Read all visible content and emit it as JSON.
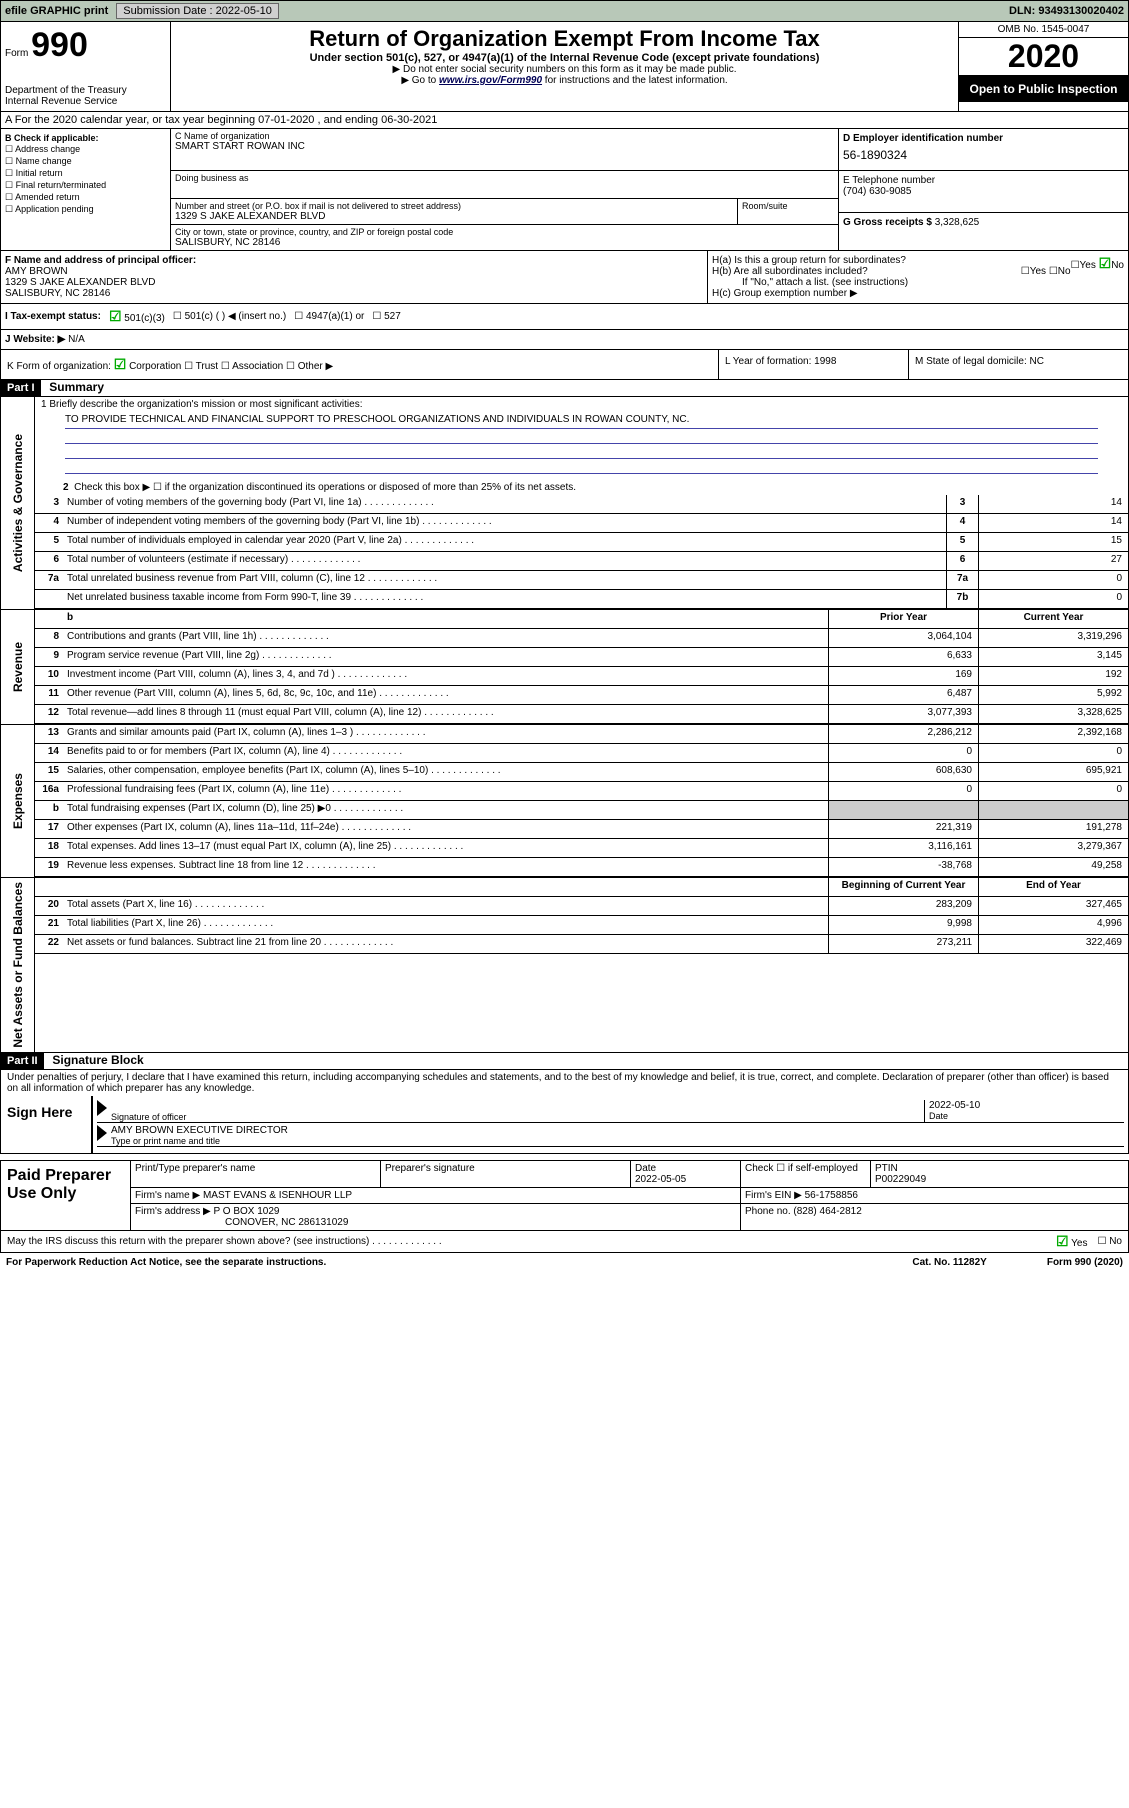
{
  "topbar": {
    "efile": "efile GRAPHIC print",
    "submission_label": "Submission Date : 2022-05-10",
    "dln": "DLN: 93493130020402"
  },
  "header": {
    "form_prefix": "Form",
    "form_number": "990",
    "dept": "Department of the Treasury\nInternal Revenue Service",
    "title": "Return of Organization Exempt From Income Tax",
    "sub": "Under section 501(c), 527, or 4947(a)(1) of the Internal Revenue Code (except private foundations)",
    "note1": "▶ Do not enter social security numbers on this form as it may be made public.",
    "note2_pre": "▶ Go to ",
    "note2_link": "www.irs.gov/Form990",
    "note2_post": " for instructions and the latest information.",
    "omb": "OMB No. 1545-0047",
    "year": "2020",
    "inspect": "Open to Public Inspection"
  },
  "row_a": "A For the 2020 calendar year, or tax year beginning 07-01-2020    , and ending 06-30-2021",
  "col_b": {
    "label": "B Check if applicable:",
    "opts": [
      "Address change",
      "Name change",
      "Initial return",
      "Final return/terminated",
      "Amended return",
      "Application pending"
    ]
  },
  "col_c": {
    "name_label": "C Name of organization",
    "name": "SMART START ROWAN INC",
    "dba_label": "Doing business as",
    "addr_label": "Number and street (or P.O. box if mail is not delivered to street address)",
    "addr": "1329 S JAKE ALEXANDER BLVD",
    "suite_label": "Room/suite",
    "city_label": "City or town, state or province, country, and ZIP or foreign postal code",
    "city": "SALISBURY, NC  28146"
  },
  "col_d": {
    "label": "D Employer identification number",
    "val": "56-1890324"
  },
  "col_e": {
    "label": "E Telephone number",
    "val": "(704) 630-9085"
  },
  "col_g": {
    "label": "G Gross receipts $",
    "val": "3,328,625"
  },
  "col_f": {
    "label": "F  Name and address of principal officer:",
    "name": "AMY BROWN",
    "addr1": "1329 S JAKE ALEXANDER BLVD",
    "addr2": "SALISBURY, NC  28146"
  },
  "col_h": {
    "ha": "H(a)  Is this a group return for subordinates?",
    "hb": "H(b)  Are all subordinates included?",
    "hb_note": "If \"No,\" attach a list. (see instructions)",
    "hc": "H(c)  Group exemption number ▶"
  },
  "row_i": {
    "label": "I   Tax-exempt status:",
    "opt1": "501(c)(3)",
    "opt2": "501(c) (  ) ◀ (insert no.)",
    "opt3": "4947(a)(1) or",
    "opt4": "527"
  },
  "row_j": {
    "label": "J   Website: ▶",
    "val": "N/A"
  },
  "row_k": {
    "label": "K Form of organization:",
    "opts": [
      "Corporation",
      "Trust",
      "Association",
      "Other ▶"
    ]
  },
  "row_l": {
    "label": "L Year of formation:",
    "val": "1998"
  },
  "row_m": {
    "label": "M State of legal domicile:",
    "val": "NC"
  },
  "part1": {
    "hdr": "Part I",
    "title": "Summary"
  },
  "summary": {
    "q1_label": "1   Briefly describe the organization's mission or most significant activities:",
    "q1_text": "TO PROVIDE TECHNICAL AND FINANCIAL SUPPORT TO PRESCHOOL ORGANIZATIONS AND INDIVIDUALS IN ROWAN COUNTY, NC.",
    "q2": "Check this box ▶ ☐  if the organization discontinued its operations or disposed of more than 25% of its net assets.",
    "rows_gov": [
      {
        "n": "3",
        "d": "Number of voting members of the governing body (Part VI, line 1a)",
        "box": "3",
        "v": "14"
      },
      {
        "n": "4",
        "d": "Number of independent voting members of the governing body (Part VI, line 1b)",
        "box": "4",
        "v": "14"
      },
      {
        "n": "5",
        "d": "Total number of individuals employed in calendar year 2020 (Part V, line 2a)",
        "box": "5",
        "v": "15"
      },
      {
        "n": "6",
        "d": "Total number of volunteers (estimate if necessary)",
        "box": "6",
        "v": "27"
      },
      {
        "n": "7a",
        "d": "Total unrelated business revenue from Part VIII, column (C), line 12",
        "box": "7a",
        "v": "0"
      },
      {
        "n": "",
        "d": "Net unrelated business taxable income from Form 990-T, line 39",
        "box": "7b",
        "v": "0"
      }
    ],
    "hdr_prior": "Prior Year",
    "hdr_current": "Current Year",
    "rows_rev": [
      {
        "n": "8",
        "d": "Contributions and grants (Part VIII, line 1h)",
        "p": "3,064,104",
        "c": "3,319,296"
      },
      {
        "n": "9",
        "d": "Program service revenue (Part VIII, line 2g)",
        "p": "6,633",
        "c": "3,145"
      },
      {
        "n": "10",
        "d": "Investment income (Part VIII, column (A), lines 3, 4, and 7d )",
        "p": "169",
        "c": "192"
      },
      {
        "n": "11",
        "d": "Other revenue (Part VIII, column (A), lines 5, 6d, 8c, 9c, 10c, and 11e)",
        "p": "6,487",
        "c": "5,992"
      },
      {
        "n": "12",
        "d": "Total revenue—add lines 8 through 11 (must equal Part VIII, column (A), line 12)",
        "p": "3,077,393",
        "c": "3,328,625"
      }
    ],
    "rows_exp": [
      {
        "n": "13",
        "d": "Grants and similar amounts paid (Part IX, column (A), lines 1–3 )",
        "p": "2,286,212",
        "c": "2,392,168"
      },
      {
        "n": "14",
        "d": "Benefits paid to or for members (Part IX, column (A), line 4)",
        "p": "0",
        "c": "0"
      },
      {
        "n": "15",
        "d": "Salaries, other compensation, employee benefits (Part IX, column (A), lines 5–10)",
        "p": "608,630",
        "c": "695,921"
      },
      {
        "n": "16a",
        "d": "Professional fundraising fees (Part IX, column (A), line 11e)",
        "p": "0",
        "c": "0"
      },
      {
        "n": "b",
        "d": "Total fundraising expenses (Part IX, column (D), line 25) ▶0",
        "p": "",
        "c": "",
        "shade": true
      },
      {
        "n": "17",
        "d": "Other expenses (Part IX, column (A), lines 11a–11d, 11f–24e)",
        "p": "221,319",
        "c": "191,278"
      },
      {
        "n": "18",
        "d": "Total expenses. Add lines 13–17 (must equal Part IX, column (A), line 25)",
        "p": "3,116,161",
        "c": "3,279,367"
      },
      {
        "n": "19",
        "d": "Revenue less expenses. Subtract line 18 from line 12",
        "p": "-38,768",
        "c": "49,258"
      }
    ],
    "hdr_begin": "Beginning of Current Year",
    "hdr_end": "End of Year",
    "rows_net": [
      {
        "n": "20",
        "d": "Total assets (Part X, line 16)",
        "p": "283,209",
        "c": "327,465"
      },
      {
        "n": "21",
        "d": "Total liabilities (Part X, line 26)",
        "p": "9,998",
        "c": "4,996"
      },
      {
        "n": "22",
        "d": "Net assets or fund balances. Subtract line 21 from line 20",
        "p": "273,211",
        "c": "322,469"
      }
    ]
  },
  "side_labels": {
    "gov": "Activities & Governance",
    "rev": "Revenue",
    "exp": "Expenses",
    "net": "Net Assets or Fund Balances"
  },
  "part2": {
    "hdr": "Part II",
    "title": "Signature Block"
  },
  "sig": {
    "penalties": "Under penalties of perjury, I declare that I have examined this return, including accompanying schedules and statements, and to the best of my knowledge and belief, it is true, correct, and complete. Declaration of preparer (other than officer) is based on all information of which preparer has any knowledge.",
    "sign_here": "Sign Here",
    "sig_officer": "Signature of officer",
    "date": "Date",
    "date_val": "2022-05-10",
    "name_title": "AMY BROWN  EXECUTIVE DIRECTOR",
    "name_label": "Type or print name and title"
  },
  "prep": {
    "label": "Paid Preparer Use Only",
    "h_name": "Print/Type preparer's name",
    "h_sig": "Preparer's signature",
    "h_date": "Date",
    "date_val": "2022-05-05",
    "h_check": "Check ☐ if self-employed",
    "h_ptin": "PTIN",
    "ptin": "P00229049",
    "firm_label": "Firm's name     ▶",
    "firm": "MAST EVANS & ISENHOUR LLP",
    "ein_label": "Firm's EIN ▶",
    "ein": "56-1758856",
    "addr_label": "Firm's address ▶",
    "addr1": "P O BOX 1029",
    "addr2": "CONOVER, NC  286131029",
    "phone_label": "Phone no.",
    "phone": "(828) 464-2812"
  },
  "footer": {
    "discuss": "May the IRS discuss this return with the preparer shown above? (see instructions)",
    "yes": "Yes",
    "no": "No",
    "paperwork": "For Paperwork Reduction Act Notice, see the separate instructions.",
    "cat": "Cat. No. 11282Y",
    "form": "Form 990 (2020)"
  }
}
